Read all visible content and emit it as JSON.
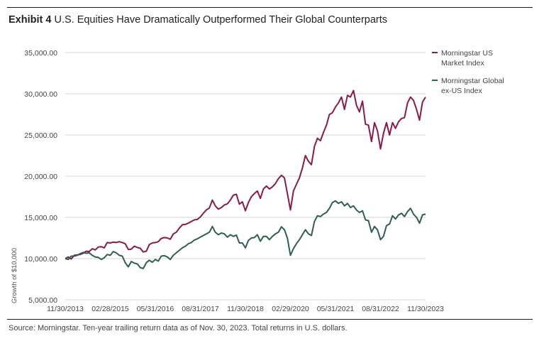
{
  "header": {
    "exhibit": "Exhibit 4",
    "title": "U.S. Equities Have Dramatically Outperformed Their Global Counterparts"
  },
  "footer": {
    "source": "Source: Morningstar. Ten-year trailing return data as of Nov. 30, 2023. Total returns in U.S. dollars."
  },
  "colors": {
    "us": "#8b1a4a",
    "global": "#2e5e55",
    "grid": "#d6d6d6"
  },
  "chart_data": {
    "type": "line",
    "title": "U.S. Equities Have Dramatically Outperformed Their Global Counterparts",
    "ylabel": "Growth of $10,000",
    "xlabel": "",
    "ylim": [
      5000,
      35000
    ],
    "yticks": [
      5000,
      10000,
      15000,
      20000,
      25000,
      30000,
      35000
    ],
    "ytick_labels": [
      "5,000.00",
      "10,000.00",
      "15,000.00",
      "20,000.00",
      "25,000.00",
      "30,000.00",
      "35,000.00"
    ],
    "xticks": [
      2013.917,
      2015.167,
      2016.417,
      2017.667,
      2018.917,
      2020.167,
      2021.417,
      2022.667,
      2023.917
    ],
    "xtick_labels": [
      "11/30/2013",
      "02/28/2015",
      "05/31/2016",
      "08/31/2017",
      "11/30/2018",
      "02/29/2020",
      "05/31/2021",
      "08/31/2022",
      "11/30/2023"
    ],
    "xlim": [
      2013.917,
      2023.917
    ],
    "grid": "horizontal",
    "legend": "top-right",
    "series": [
      {
        "name": "Morningstar US Market Index",
        "legend_lines": [
          "Morningstar US",
          "Market Index"
        ],
        "color": "#8b1a4a",
        "points": [
          [
            2013.917,
            10000
          ],
          [
            2014.0,
            10200
          ],
          [
            2014.083,
            9950
          ],
          [
            2014.167,
            10400
          ],
          [
            2014.25,
            10450
          ],
          [
            2014.333,
            10500
          ],
          [
            2014.417,
            10650
          ],
          [
            2014.5,
            10900
          ],
          [
            2014.583,
            10850
          ],
          [
            2014.667,
            11200
          ],
          [
            2014.75,
            11050
          ],
          [
            2014.833,
            11400
          ],
          [
            2014.917,
            11450
          ],
          [
            2015.0,
            11300
          ],
          [
            2015.083,
            11950
          ],
          [
            2015.167,
            11900
          ],
          [
            2015.25,
            12000
          ],
          [
            2015.333,
            11950
          ],
          [
            2015.417,
            12050
          ],
          [
            2015.5,
            11950
          ],
          [
            2015.583,
            11800
          ],
          [
            2015.667,
            11100
          ],
          [
            2015.75,
            11150
          ],
          [
            2015.833,
            11500
          ],
          [
            2015.917,
            11350
          ],
          [
            2016.0,
            11250
          ],
          [
            2016.083,
            10800
          ],
          [
            2016.167,
            10900
          ],
          [
            2016.25,
            11700
          ],
          [
            2016.333,
            11900
          ],
          [
            2016.417,
            11950
          ],
          [
            2016.5,
            12050
          ],
          [
            2016.583,
            12450
          ],
          [
            2016.667,
            12550
          ],
          [
            2016.75,
            12500
          ],
          [
            2016.833,
            12350
          ],
          [
            2016.917,
            13000
          ],
          [
            2017.0,
            13200
          ],
          [
            2017.083,
            13700
          ],
          [
            2017.167,
            14100
          ],
          [
            2017.25,
            14150
          ],
          [
            2017.333,
            14300
          ],
          [
            2017.417,
            14500
          ],
          [
            2017.5,
            14700
          ],
          [
            2017.583,
            14750
          ],
          [
            2017.667,
            15050
          ],
          [
            2017.75,
            15500
          ],
          [
            2017.833,
            15900
          ],
          [
            2017.917,
            16150
          ],
          [
            2018.0,
            17100
          ],
          [
            2018.083,
            16400
          ],
          [
            2018.167,
            16000
          ],
          [
            2018.25,
            16200
          ],
          [
            2018.333,
            16500
          ],
          [
            2018.417,
            16650
          ],
          [
            2018.5,
            17100
          ],
          [
            2018.583,
            17700
          ],
          [
            2018.667,
            17800
          ],
          [
            2018.75,
            16600
          ],
          [
            2018.833,
            16900
          ],
          [
            2018.917,
            15800
          ],
          [
            2019.0,
            16800
          ],
          [
            2019.083,
            17500
          ],
          [
            2019.167,
            17900
          ],
          [
            2019.25,
            18200
          ],
          [
            2019.333,
            17300
          ],
          [
            2019.417,
            18450
          ],
          [
            2019.5,
            18800
          ],
          [
            2019.583,
            18450
          ],
          [
            2019.667,
            18700
          ],
          [
            2019.75,
            19100
          ],
          [
            2019.833,
            19700
          ],
          [
            2019.917,
            20100
          ],
          [
            2020.0,
            19800
          ],
          [
            2020.083,
            17900
          ],
          [
            2020.167,
            15900
          ],
          [
            2020.25,
            18200
          ],
          [
            2020.333,
            19000
          ],
          [
            2020.417,
            19800
          ],
          [
            2020.5,
            21000
          ],
          [
            2020.583,
            22500
          ],
          [
            2020.667,
            21800
          ],
          [
            2020.75,
            21400
          ],
          [
            2020.833,
            23600
          ],
          [
            2020.917,
            24600
          ],
          [
            2021.0,
            24300
          ],
          [
            2021.083,
            25300
          ],
          [
            2021.167,
            26200
          ],
          [
            2021.25,
            27500
          ],
          [
            2021.333,
            27700
          ],
          [
            2021.417,
            28400
          ],
          [
            2021.5,
            28900
          ],
          [
            2021.583,
            29600
          ],
          [
            2021.667,
            28100
          ],
          [
            2021.75,
            29800
          ],
          [
            2021.833,
            29600
          ],
          [
            2021.917,
            30400
          ],
          [
            2022.0,
            28600
          ],
          [
            2022.083,
            27800
          ],
          [
            2022.167,
            29100
          ],
          [
            2022.25,
            26300
          ],
          [
            2022.333,
            26200
          ],
          [
            2022.417,
            24200
          ],
          [
            2022.5,
            26500
          ],
          [
            2022.583,
            25500
          ],
          [
            2022.667,
            23300
          ],
          [
            2022.75,
            25200
          ],
          [
            2022.833,
            26500
          ],
          [
            2022.917,
            25000
          ],
          [
            2023.0,
            26500
          ],
          [
            2023.083,
            25800
          ],
          [
            2023.167,
            26600
          ],
          [
            2023.25,
            27000
          ],
          [
            2023.333,
            27100
          ],
          [
            2023.417,
            28900
          ],
          [
            2023.5,
            29600
          ],
          [
            2023.583,
            29200
          ],
          [
            2023.667,
            28100
          ],
          [
            2023.75,
            26800
          ],
          [
            2023.833,
            29000
          ],
          [
            2023.917,
            29600
          ]
        ]
      },
      {
        "name": "Morningstar Global ex-US Index",
        "legend_lines": [
          "Morningstar Global",
          "ex-US Index"
        ],
        "color": "#2e5e55",
        "points": [
          [
            2013.917,
            10000
          ],
          [
            2014.0,
            9900
          ],
          [
            2014.083,
            10300
          ],
          [
            2014.167,
            10300
          ],
          [
            2014.25,
            10400
          ],
          [
            2014.333,
            10600
          ],
          [
            2014.417,
            10750
          ],
          [
            2014.5,
            10650
          ],
          [
            2014.583,
            10700
          ],
          [
            2014.667,
            10400
          ],
          [
            2014.75,
            10200
          ],
          [
            2014.833,
            10150
          ],
          [
            2014.917,
            9900
          ],
          [
            2015.0,
            10100
          ],
          [
            2015.083,
            10500
          ],
          [
            2015.167,
            10400
          ],
          [
            2015.25,
            10850
          ],
          [
            2015.333,
            10700
          ],
          [
            2015.417,
            10400
          ],
          [
            2015.5,
            10300
          ],
          [
            2015.583,
            9500
          ],
          [
            2015.667,
            9000
          ],
          [
            2015.75,
            9650
          ],
          [
            2015.833,
            9450
          ],
          [
            2015.917,
            9350
          ],
          [
            2016.0,
            8900
          ],
          [
            2016.083,
            8800
          ],
          [
            2016.167,
            9500
          ],
          [
            2016.25,
            9800
          ],
          [
            2016.333,
            9550
          ],
          [
            2016.417,
            9900
          ],
          [
            2016.5,
            9700
          ],
          [
            2016.583,
            10300
          ],
          [
            2016.667,
            10350
          ],
          [
            2016.75,
            10200
          ],
          [
            2016.833,
            9900
          ],
          [
            2016.917,
            10400
          ],
          [
            2017.0,
            10700
          ],
          [
            2017.083,
            11000
          ],
          [
            2017.167,
            11300
          ],
          [
            2017.25,
            11500
          ],
          [
            2017.333,
            11800
          ],
          [
            2017.417,
            11950
          ],
          [
            2017.5,
            12250
          ],
          [
            2017.583,
            12400
          ],
          [
            2017.667,
            12600
          ],
          [
            2017.75,
            12800
          ],
          [
            2017.833,
            13000
          ],
          [
            2017.917,
            13200
          ],
          [
            2018.0,
            13900
          ],
          [
            2018.083,
            13200
          ],
          [
            2018.167,
            12900
          ],
          [
            2018.25,
            13100
          ],
          [
            2018.333,
            13000
          ],
          [
            2018.417,
            12600
          ],
          [
            2018.5,
            12900
          ],
          [
            2018.583,
            12700
          ],
          [
            2018.667,
            12850
          ],
          [
            2018.75,
            11900
          ],
          [
            2018.833,
            11900
          ],
          [
            2018.917,
            11300
          ],
          [
            2019.0,
            12200
          ],
          [
            2019.083,
            12500
          ],
          [
            2019.167,
            12550
          ],
          [
            2019.25,
            12900
          ],
          [
            2019.333,
            12100
          ],
          [
            2019.417,
            12700
          ],
          [
            2019.5,
            12700
          ],
          [
            2019.583,
            12300
          ],
          [
            2019.667,
            12700
          ],
          [
            2019.75,
            13000
          ],
          [
            2019.833,
            13200
          ],
          [
            2019.917,
            13850
          ],
          [
            2020.0,
            13500
          ],
          [
            2020.083,
            12500
          ],
          [
            2020.167,
            10400
          ],
          [
            2020.25,
            11200
          ],
          [
            2020.333,
            11800
          ],
          [
            2020.417,
            12300
          ],
          [
            2020.5,
            12900
          ],
          [
            2020.583,
            13500
          ],
          [
            2020.667,
            13000
          ],
          [
            2020.75,
            12800
          ],
          [
            2020.833,
            14500
          ],
          [
            2020.917,
            15200
          ],
          [
            2021.0,
            15100
          ],
          [
            2021.083,
            15400
          ],
          [
            2021.167,
            15600
          ],
          [
            2021.25,
            16100
          ],
          [
            2021.333,
            16800
          ],
          [
            2021.417,
            17000
          ],
          [
            2021.5,
            16700
          ],
          [
            2021.583,
            16900
          ],
          [
            2021.667,
            16400
          ],
          [
            2021.75,
            16700
          ],
          [
            2021.833,
            16200
          ],
          [
            2021.917,
            16400
          ],
          [
            2022.0,
            15900
          ],
          [
            2022.083,
            15600
          ],
          [
            2022.167,
            15800
          ],
          [
            2022.25,
            14700
          ],
          [
            2022.333,
            14600
          ],
          [
            2022.417,
            13200
          ],
          [
            2022.5,
            13900
          ],
          [
            2022.583,
            13500
          ],
          [
            2022.667,
            12300
          ],
          [
            2022.75,
            12700
          ],
          [
            2022.833,
            14000
          ],
          [
            2022.917,
            14200
          ],
          [
            2023.0,
            15200
          ],
          [
            2023.083,
            14800
          ],
          [
            2023.167,
            15300
          ],
          [
            2023.25,
            15500
          ],
          [
            2023.333,
            15100
          ],
          [
            2023.417,
            15700
          ],
          [
            2023.5,
            16100
          ],
          [
            2023.583,
            15400
          ],
          [
            2023.667,
            15000
          ],
          [
            2023.75,
            14300
          ],
          [
            2023.833,
            15300
          ],
          [
            2023.917,
            15400
          ]
        ]
      }
    ]
  }
}
